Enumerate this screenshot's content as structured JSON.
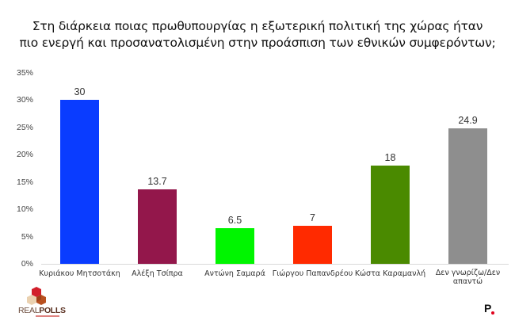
{
  "title": {
    "line1": "Στη διάρκεια ποιας πρωθυπουργίας η εξωτερική πολιτική της χώρας ήταν",
    "line2": "πιο ενεργή και προσανατολισμένη στην προάσπιση των εθνικών συμφερόντων;"
  },
  "y_axis": {
    "ticks": [
      "0%",
      "5%",
      "10%",
      "15%",
      "20%",
      "25%",
      "30%",
      "35%"
    ]
  },
  "bars": [
    {
      "label": "Κυριάκου Μητσοτάκη",
      "value_label": "30",
      "color": "#0a3cff"
    },
    {
      "label": "Αλέξη Τσίπρα",
      "value_label": "13.7",
      "color": "#93174b"
    },
    {
      "label": "Αντώνη Σαμαρά",
      "value_label": "6.5",
      "color": "#00f500"
    },
    {
      "label": "Γιώργου Παπανδρέου",
      "value_label": "7",
      "color": "#ff2a00"
    },
    {
      "label": "Κώστα Καραμανλή",
      "value_label": "18",
      "color": "#4a8a00"
    },
    {
      "label": "Δεν γνωρίζω/Δεν απαντώ",
      "value_label": "24.9",
      "color": "#8e8e8e"
    }
  ],
  "logos": {
    "left": {
      "text_light": "REAL",
      "text_bold": "POLLS"
    },
    "right": {
      "text": "P"
    }
  },
  "chart_data": {
    "type": "bar",
    "title": "Στη διάρκεια ποιας πρωθυπουργίας η εξωτερική πολιτική της χώρας ήταν πιο ενεργή και προσανατολισμένη στην προάσπιση των εθνικών συμφερόντων;",
    "categories": [
      "Κυριάκου Μητσοτάκη",
      "Αλέξη Τσίπρα",
      "Αντώνη Σαμαρά",
      "Γιώργου Παπανδρέου",
      "Κώστα Καραμανλή",
      "Δεν γνωρίζω/Δεν απαντώ"
    ],
    "values": [
      30,
      13.7,
      6.5,
      7,
      18,
      24.9
    ],
    "colors": [
      "#0a3cff",
      "#93174b",
      "#00f500",
      "#ff2a00",
      "#4a8a00",
      "#8e8e8e"
    ],
    "xlabel": "",
    "ylabel": "",
    "ylim": [
      0,
      35
    ],
    "ytick_step": 5,
    "ytick_format": "percent",
    "grid": false,
    "legend": "none",
    "data_labels": true
  }
}
